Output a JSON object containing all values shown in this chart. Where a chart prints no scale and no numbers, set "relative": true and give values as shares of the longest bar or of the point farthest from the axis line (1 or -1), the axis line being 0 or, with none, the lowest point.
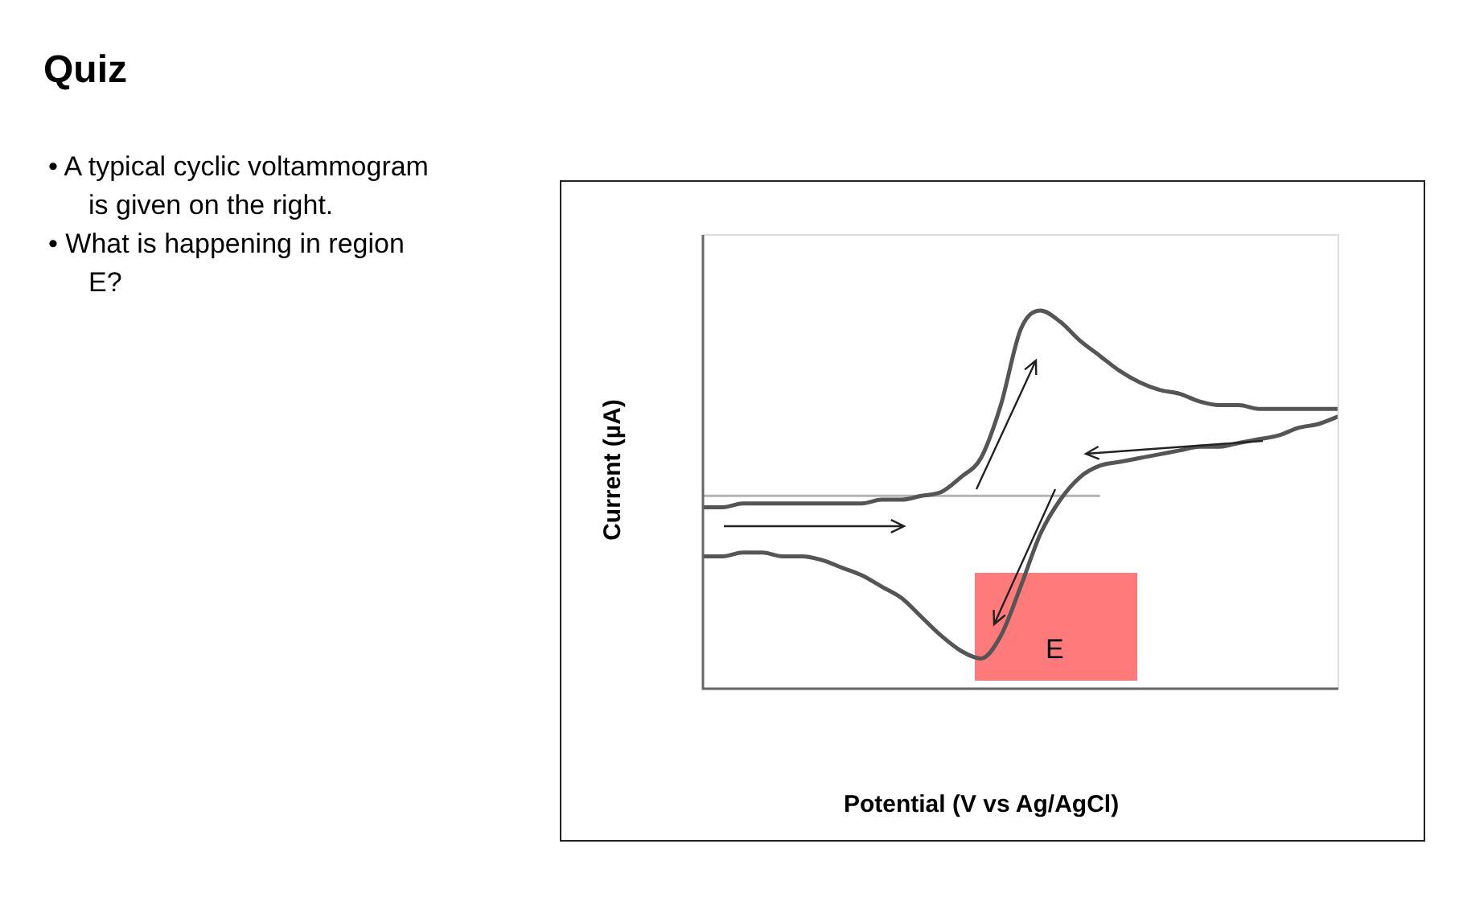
{
  "chart_data": {
    "type": "line",
    "title": "Quiz",
    "xlabel": "Potential (V vs Ag/AgCl)",
    "ylabel": "Current (µA)",
    "relative": true,
    "marker": "none",
    "annotations": [
      "• A typical cyclic voltammogram is given on the right.",
      "• What is happening in region E?",
      "E"
    ],
    "categories": [
      null,
      null,
      null,
      null,
      null,
      null,
      null,
      null,
      null,
      null,
      null,
      null,
      null,
      null,
      null,
      null,
      null,
      null,
      null,
      null,
      null,
      null,
      null,
      null,
      null,
      null,
      null,
      null,
      null,
      null,
      null,
      null,
      null
    ],
    "series": [
      {
        "color": "#555555",
        "values": [
          0.48,
          0.48,
          0.49,
          0.49,
          0.49,
          0.49,
          0.49,
          0.49,
          0.49,
          0.5,
          0.5,
          0.51,
          0.52,
          0.56,
          0.61,
          0.75,
          0.95,
          1,
          0.97,
          0.92,
          0.88,
          0.84,
          0.81,
          0.79,
          0.78,
          0.76,
          0.75,
          0.75,
          0.74,
          0.74,
          0.74,
          0.74,
          0.74
        ]
      },
      {
        "color": "#555555",
        "values": [
          0.35,
          0.35,
          0.36,
          0.36,
          0.35,
          0.35,
          0.34,
          0.32,
          0.3,
          0.27,
          0.24,
          0.19,
          0.14,
          0.1,
          0.08,
          0.14,
          0.27,
          0.41,
          0.5,
          0.56,
          0.59,
          0.6,
          0.61,
          0.62,
          0.63,
          0.64,
          0.64,
          0.65,
          0.66,
          0.67,
          0.69,
          0.7,
          0.72
        ]
      },
      {
        "color": "#b4b4b4",
        "values": [
          0.51,
          0.51,
          0.51,
          0.51,
          0.51,
          0.51,
          0.51,
          0.51,
          0.51,
          0.51,
          0.51,
          0.51,
          0.51,
          0.51,
          0.51,
          0.51,
          0.51,
          0.51,
          0.51,
          0.51,
          0.51,
          null,
          null,
          null,
          null,
          null,
          null,
          null,
          null,
          null,
          null,
          null,
          null
        ]
      }
    ]
  }
}
